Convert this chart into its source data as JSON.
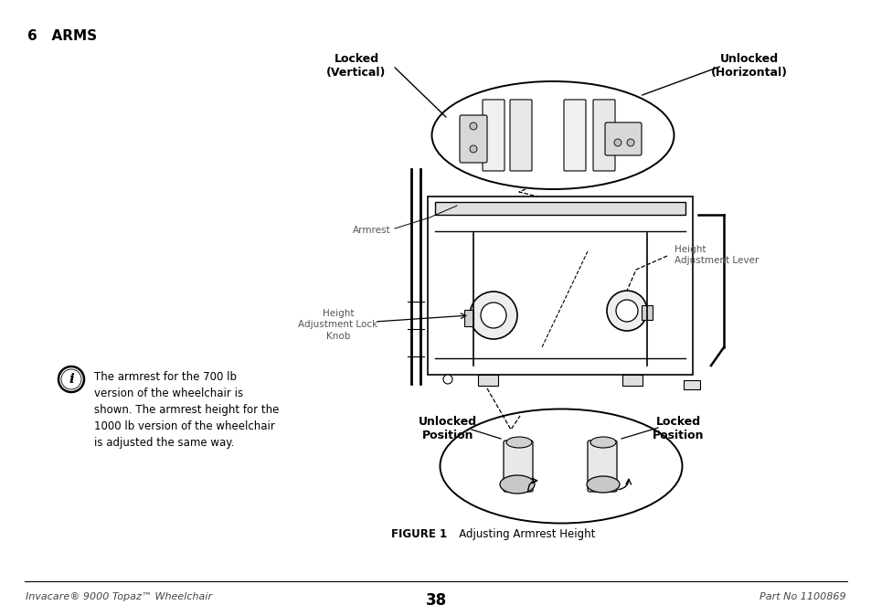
{
  "title": "6   ARMS",
  "bg_color": "#ffffff",
  "fig_width": 9.54,
  "fig_height": 6.74,
  "dpi": 100,
  "footer_left": "Invacare® 9000 Topaz™ Wheelchair",
  "footer_center": "38",
  "footer_right": "Part No 1100869",
  "figure_caption_bold": "FIGURE 1",
  "figure_caption_normal": "   Adjusting Armrest Height",
  "label_locked_vertical": "Locked\n(Vertical)",
  "label_unlocked_horizontal": "Unlocked\n(Horizontal)",
  "label_armrest": "Armrest",
  "label_height_adj_lever": "Height\nAdjustment Lever",
  "label_height_adj_lock": "Height\nAdjustment Lock\nKnob",
  "label_unlocked_pos": "Unlocked\nPosition",
  "label_locked_pos": "Locked\nPosition",
  "info_line1": "The armrest for the 700 lb",
  "info_line2": "version of the wheelchair is",
  "info_line3": "shown. The armrest height for the",
  "info_line4": "1000 lb version of the wheelchair",
  "info_line5": "is adjusted the same way."
}
